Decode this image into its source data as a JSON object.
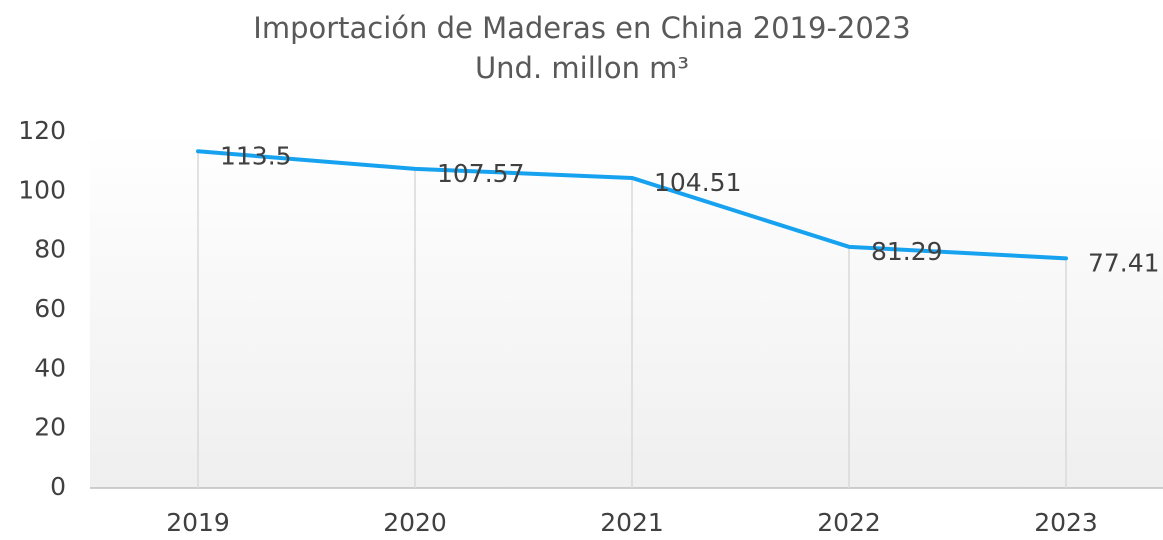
{
  "chart_data": {
    "type": "line",
    "title": "Importación de Maderas en China 2019-2023",
    "subtitle": "Und. millon m³",
    "categories": [
      "2019",
      "2020",
      "2021",
      "2022",
      "2023"
    ],
    "values": [
      113.5,
      107.57,
      104.51,
      81.29,
      77.41
    ],
    "color": "#17a2f0",
    "ylim": [
      0,
      120
    ],
    "yticks": [
      0,
      20,
      40,
      60,
      80,
      100,
      120
    ],
    "drop_lines": true,
    "data_labels": true
  }
}
